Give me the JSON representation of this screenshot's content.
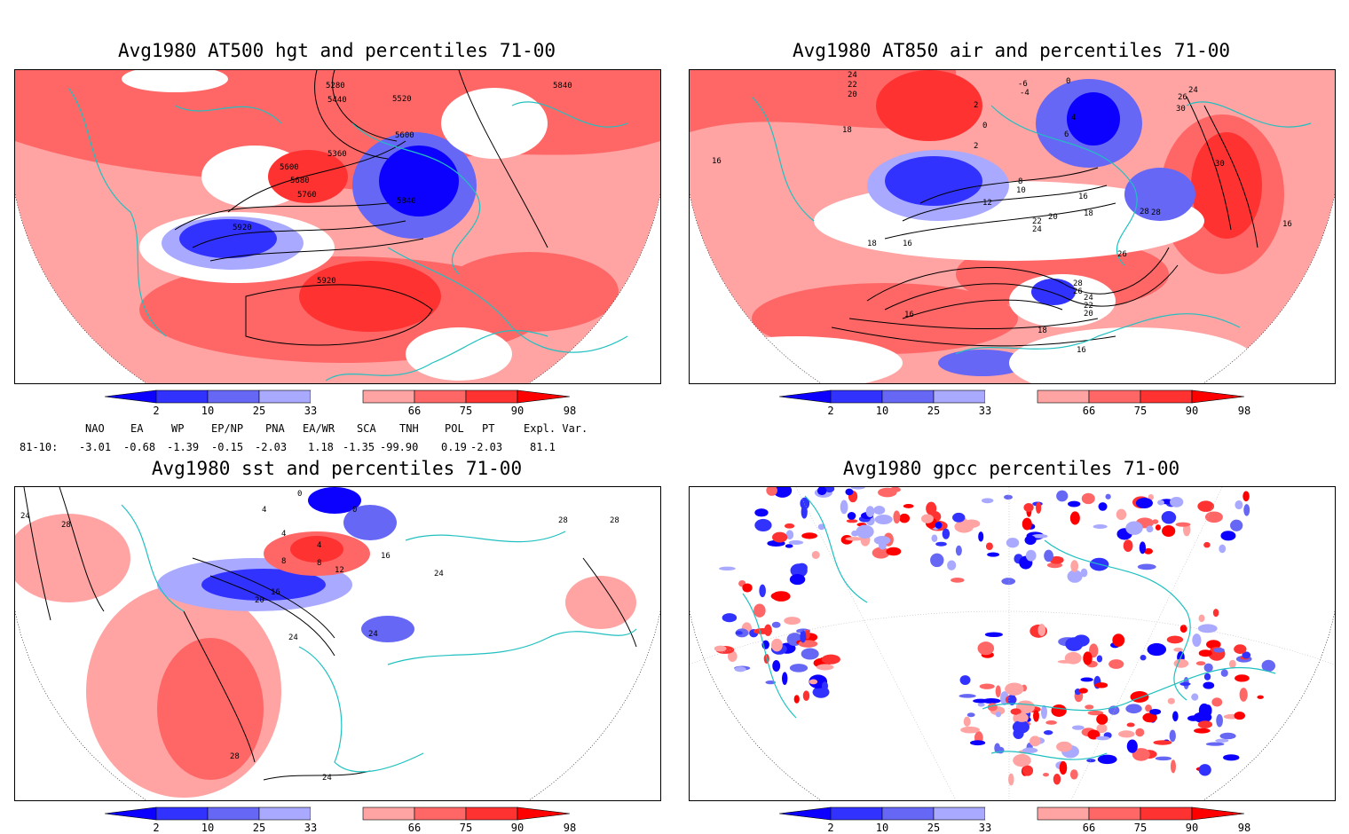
{
  "panels": [
    {
      "title": "Avg1980 AT500 hgt and percentiles 71-00",
      "contour_labels": [
        "5280",
        "5360",
        "5440",
        "5520",
        "5600",
        "5600",
        "5680",
        "5760",
        "5840",
        "5840",
        "5920",
        "5920"
      ]
    },
    {
      "title": "Avg1980 AT850 air and percentiles 71-00",
      "contour_labels": [
        "24",
        "22",
        "20",
        "18",
        "16",
        "-6",
        "-4",
        "0",
        "2",
        "2",
        "0",
        "4",
        "6",
        "8",
        "10",
        "12",
        "16",
        "18",
        "20",
        "22",
        "24",
        "26",
        "28",
        "28",
        "26",
        "24",
        "22",
        "20",
        "18",
        "18",
        "16",
        "16",
        "16",
        "30",
        "30",
        "24",
        "26",
        "28",
        "16"
      ]
    },
    {
      "title": "Avg1980 sst and percentiles 71-00",
      "contour_labels": [
        "24",
        "28",
        "0",
        "4",
        "4",
        "8",
        "8",
        "12",
        "16",
        "20",
        "24",
        "24",
        "24",
        "28",
        "28",
        "24",
        "16",
        "0",
        "4"
      ]
    },
    {
      "title": "Avg1980 gpcc percentiles 71-00",
      "contour_labels": []
    }
  ],
  "colorbar": {
    "ticks": [
      "2",
      "10",
      "25",
      "33",
      "66",
      "75",
      "90",
      "98"
    ],
    "colors": [
      "#0c00ff",
      "#3232ff",
      "#6767f5",
      "#a9a9ff",
      "#ffffff",
      "#ffa3a3",
      "#ff6767",
      "#ff3232",
      "#ff0000"
    ]
  },
  "indices": {
    "header": [
      "NAO",
      "EA",
      "WP",
      "EP/NP",
      "PNA",
      "EA/WR",
      "SCA",
      "TNH",
      "POL",
      "PT",
      "Expl. Var."
    ],
    "row_label": "81-10:",
    "values": [
      "-3.01",
      "-0.68",
      "-1.39",
      "-0.15",
      "-2.03",
      "1.18",
      "-1.35",
      "-99.90",
      "0.19",
      "-2.03",
      "81.1"
    ]
  }
}
